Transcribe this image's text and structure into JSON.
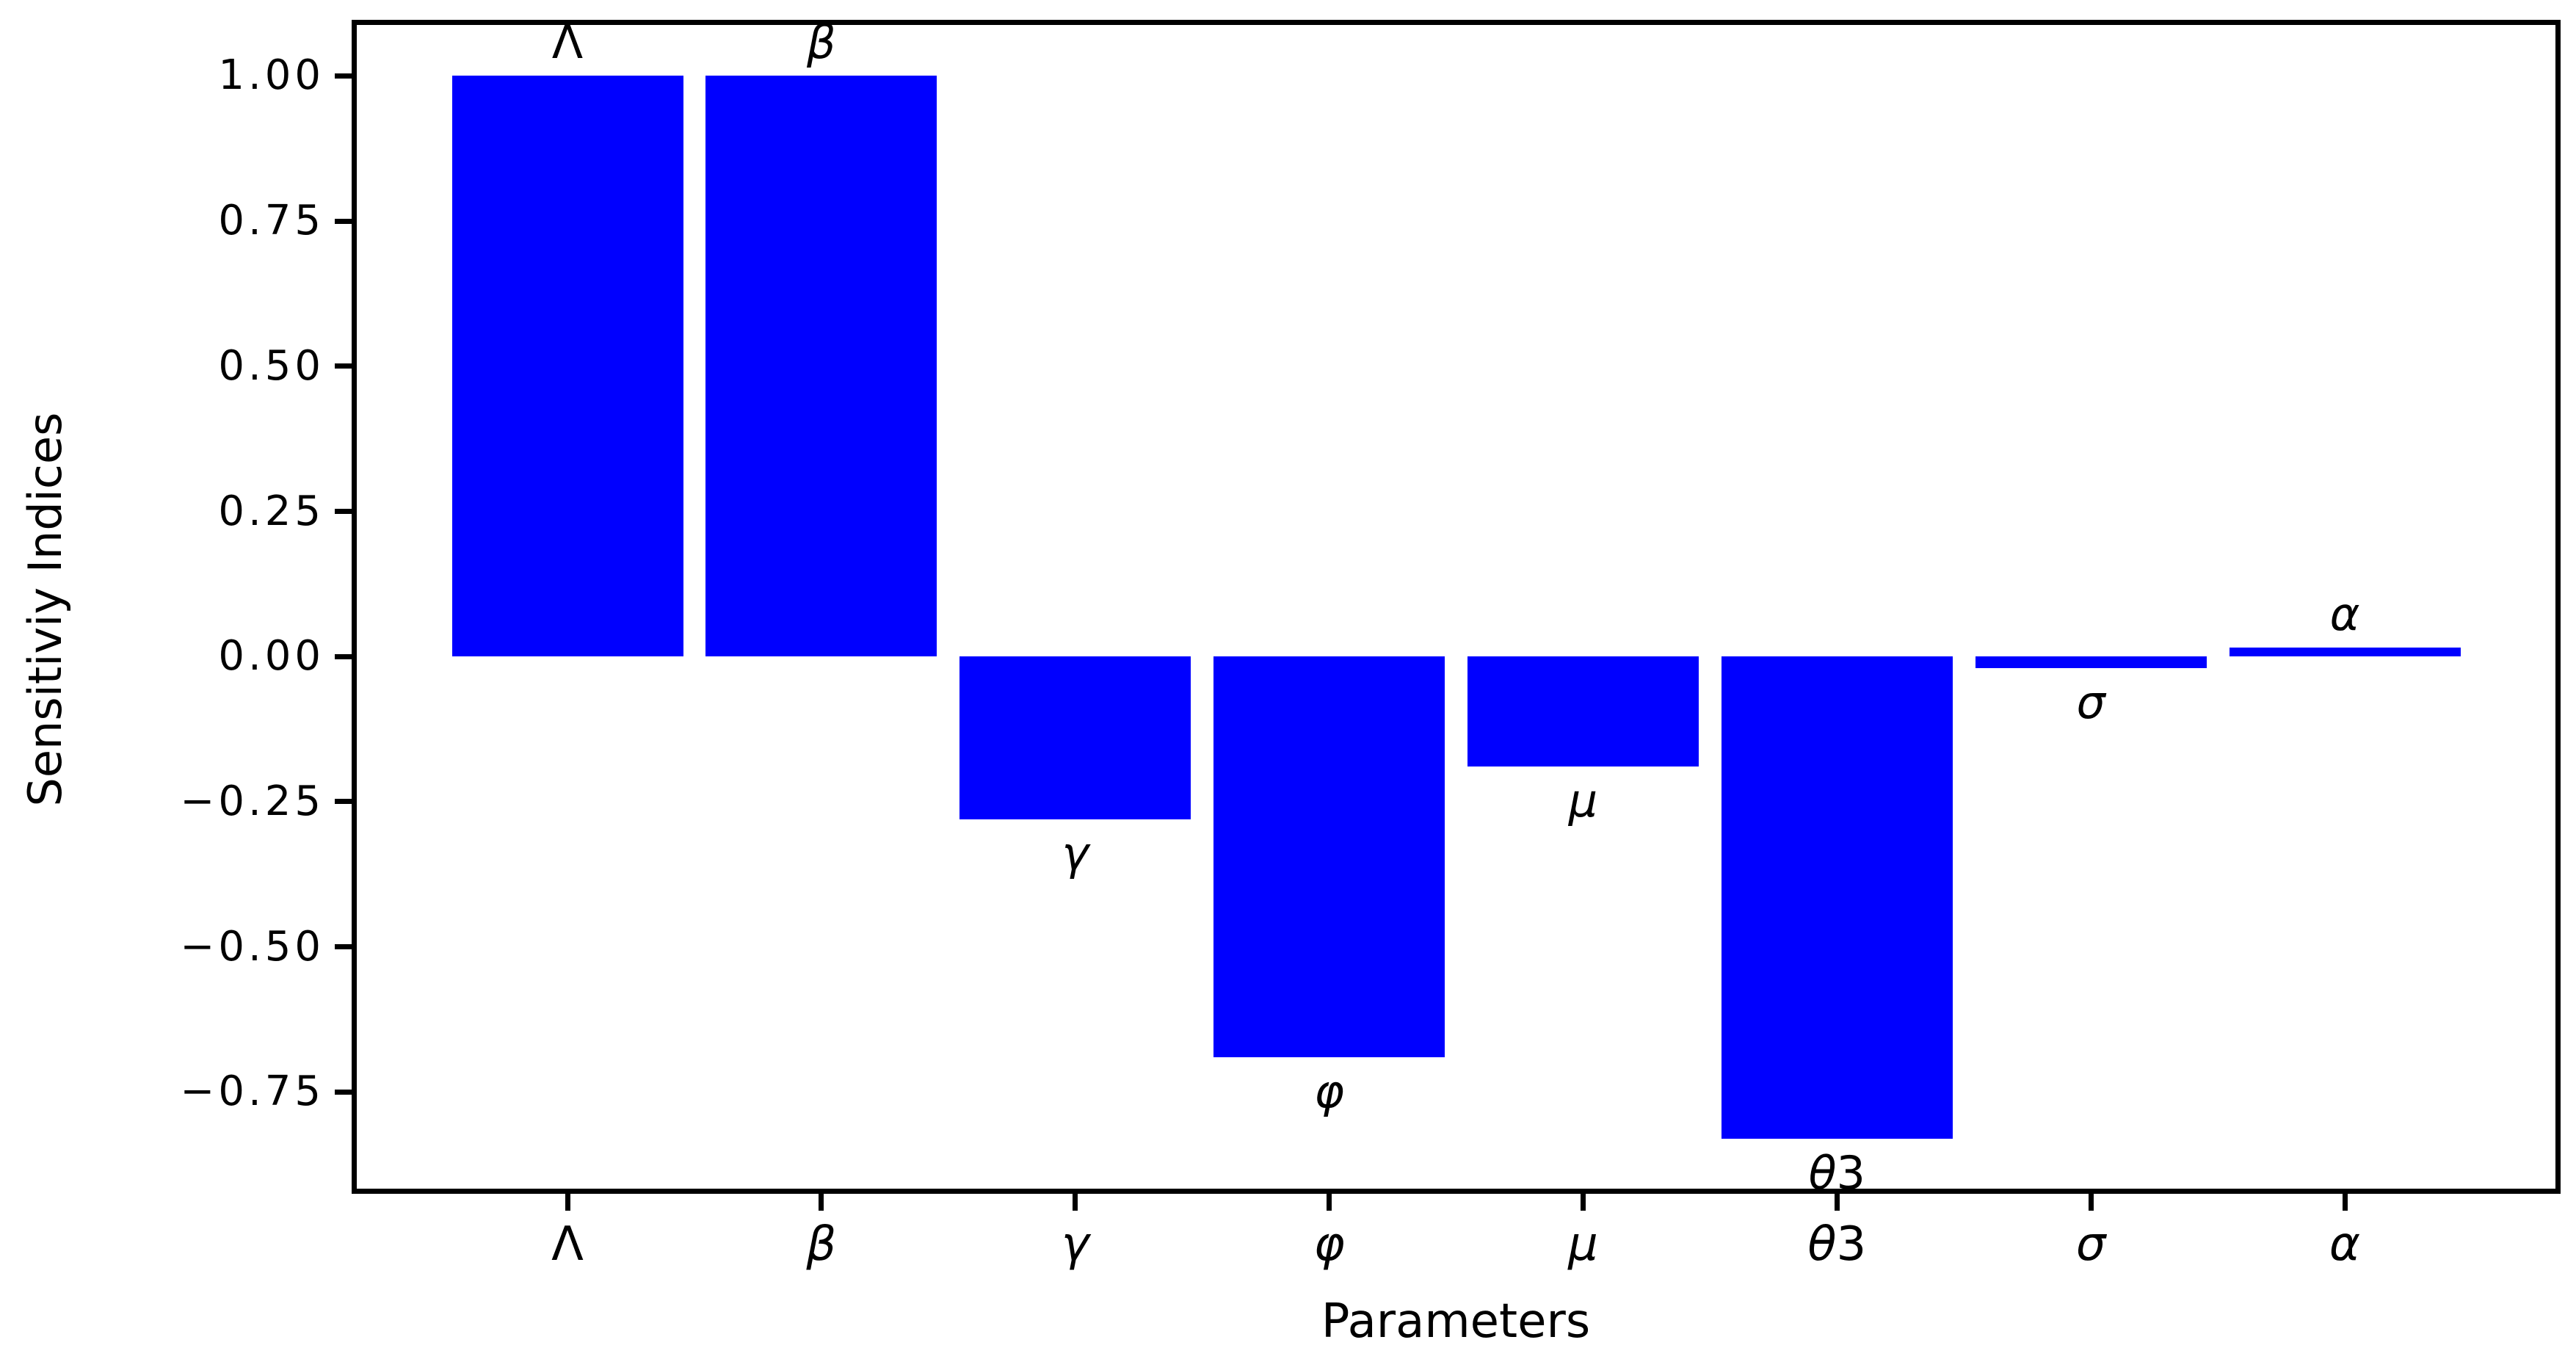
{
  "chart_data": {
    "type": "bar",
    "title": "",
    "xlabel": "Parameters",
    "ylabel": "Sensitiviy Indices",
    "categories": [
      "Λ",
      "β",
      "γ",
      "φ",
      "μ",
      "θ3",
      "σ",
      "α"
    ],
    "category_slugs": [
      "lambda",
      "beta",
      "gamma",
      "phi",
      "mu",
      "theta3",
      "sigma",
      "alpha"
    ],
    "values": [
      1.0,
      1.0,
      -0.28,
      -0.69,
      -0.19,
      -0.83,
      -0.02,
      0.015
    ],
    "bar_labels": [
      "Λ",
      "β",
      "γ",
      "φ",
      "μ",
      "θ3",
      "σ",
      "α"
    ],
    "bar_color": "#0000ff",
    "y_tick_labels": [
      "1.00",
      "0.75",
      "0.50",
      "0.25",
      "0.00",
      "−0.25",
      "−0.50",
      "−0.75"
    ],
    "y_tick_values": [
      1.0,
      0.75,
      0.5,
      0.25,
      0.0,
      -0.25,
      -0.5,
      -0.75
    ],
    "ylim": [
      -0.9215,
      1.0915
    ],
    "grid": false,
    "legend": null,
    "annotation_placement": "positive bars labeled above bar top, negative bars labeled below bar bottom"
  }
}
